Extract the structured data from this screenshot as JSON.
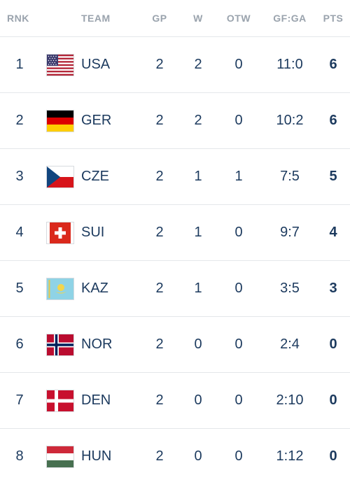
{
  "header": {
    "rank": "RNK",
    "team": "TEAM",
    "gp": "GP",
    "w": "W",
    "otw": "OTW",
    "gfga": "GF:GA",
    "pts": "PTS"
  },
  "rows": [
    {
      "rank": "1",
      "team": "USA",
      "flag": "usa-flag-icon",
      "gp": "2",
      "w": "2",
      "otw": "0",
      "gfga": "11:0",
      "pts": "6"
    },
    {
      "rank": "2",
      "team": "GER",
      "flag": "germany-flag-icon",
      "gp": "2",
      "w": "2",
      "otw": "0",
      "gfga": "10:2",
      "pts": "6"
    },
    {
      "rank": "3",
      "team": "CZE",
      "flag": "czechia-flag-icon",
      "gp": "2",
      "w": "1",
      "otw": "1",
      "gfga": "7:5",
      "pts": "5"
    },
    {
      "rank": "4",
      "team": "SUI",
      "flag": "switzerland-flag-icon",
      "gp": "2",
      "w": "1",
      "otw": "0",
      "gfga": "9:7",
      "pts": "4"
    },
    {
      "rank": "5",
      "team": "KAZ",
      "flag": "kazakhstan-flag-icon",
      "gp": "2",
      "w": "1",
      "otw": "0",
      "gfga": "3:5",
      "pts": "3"
    },
    {
      "rank": "6",
      "team": "NOR",
      "flag": "norway-flag-icon",
      "gp": "2",
      "w": "0",
      "otw": "0",
      "gfga": "2:4",
      "pts": "0"
    },
    {
      "rank": "7",
      "team": "DEN",
      "flag": "denmark-flag-icon",
      "gp": "2",
      "w": "0",
      "otw": "0",
      "gfga": "2:10",
      "pts": "0"
    },
    {
      "rank": "8",
      "team": "HUN",
      "flag": "hungary-flag-icon",
      "gp": "2",
      "w": "0",
      "otw": "0",
      "gfga": "1:12",
      "pts": "0"
    }
  ],
  "colors": {
    "text": "#1c3a5e",
    "header_text": "#9aa3ad",
    "divider": "#e4e7ea"
  }
}
